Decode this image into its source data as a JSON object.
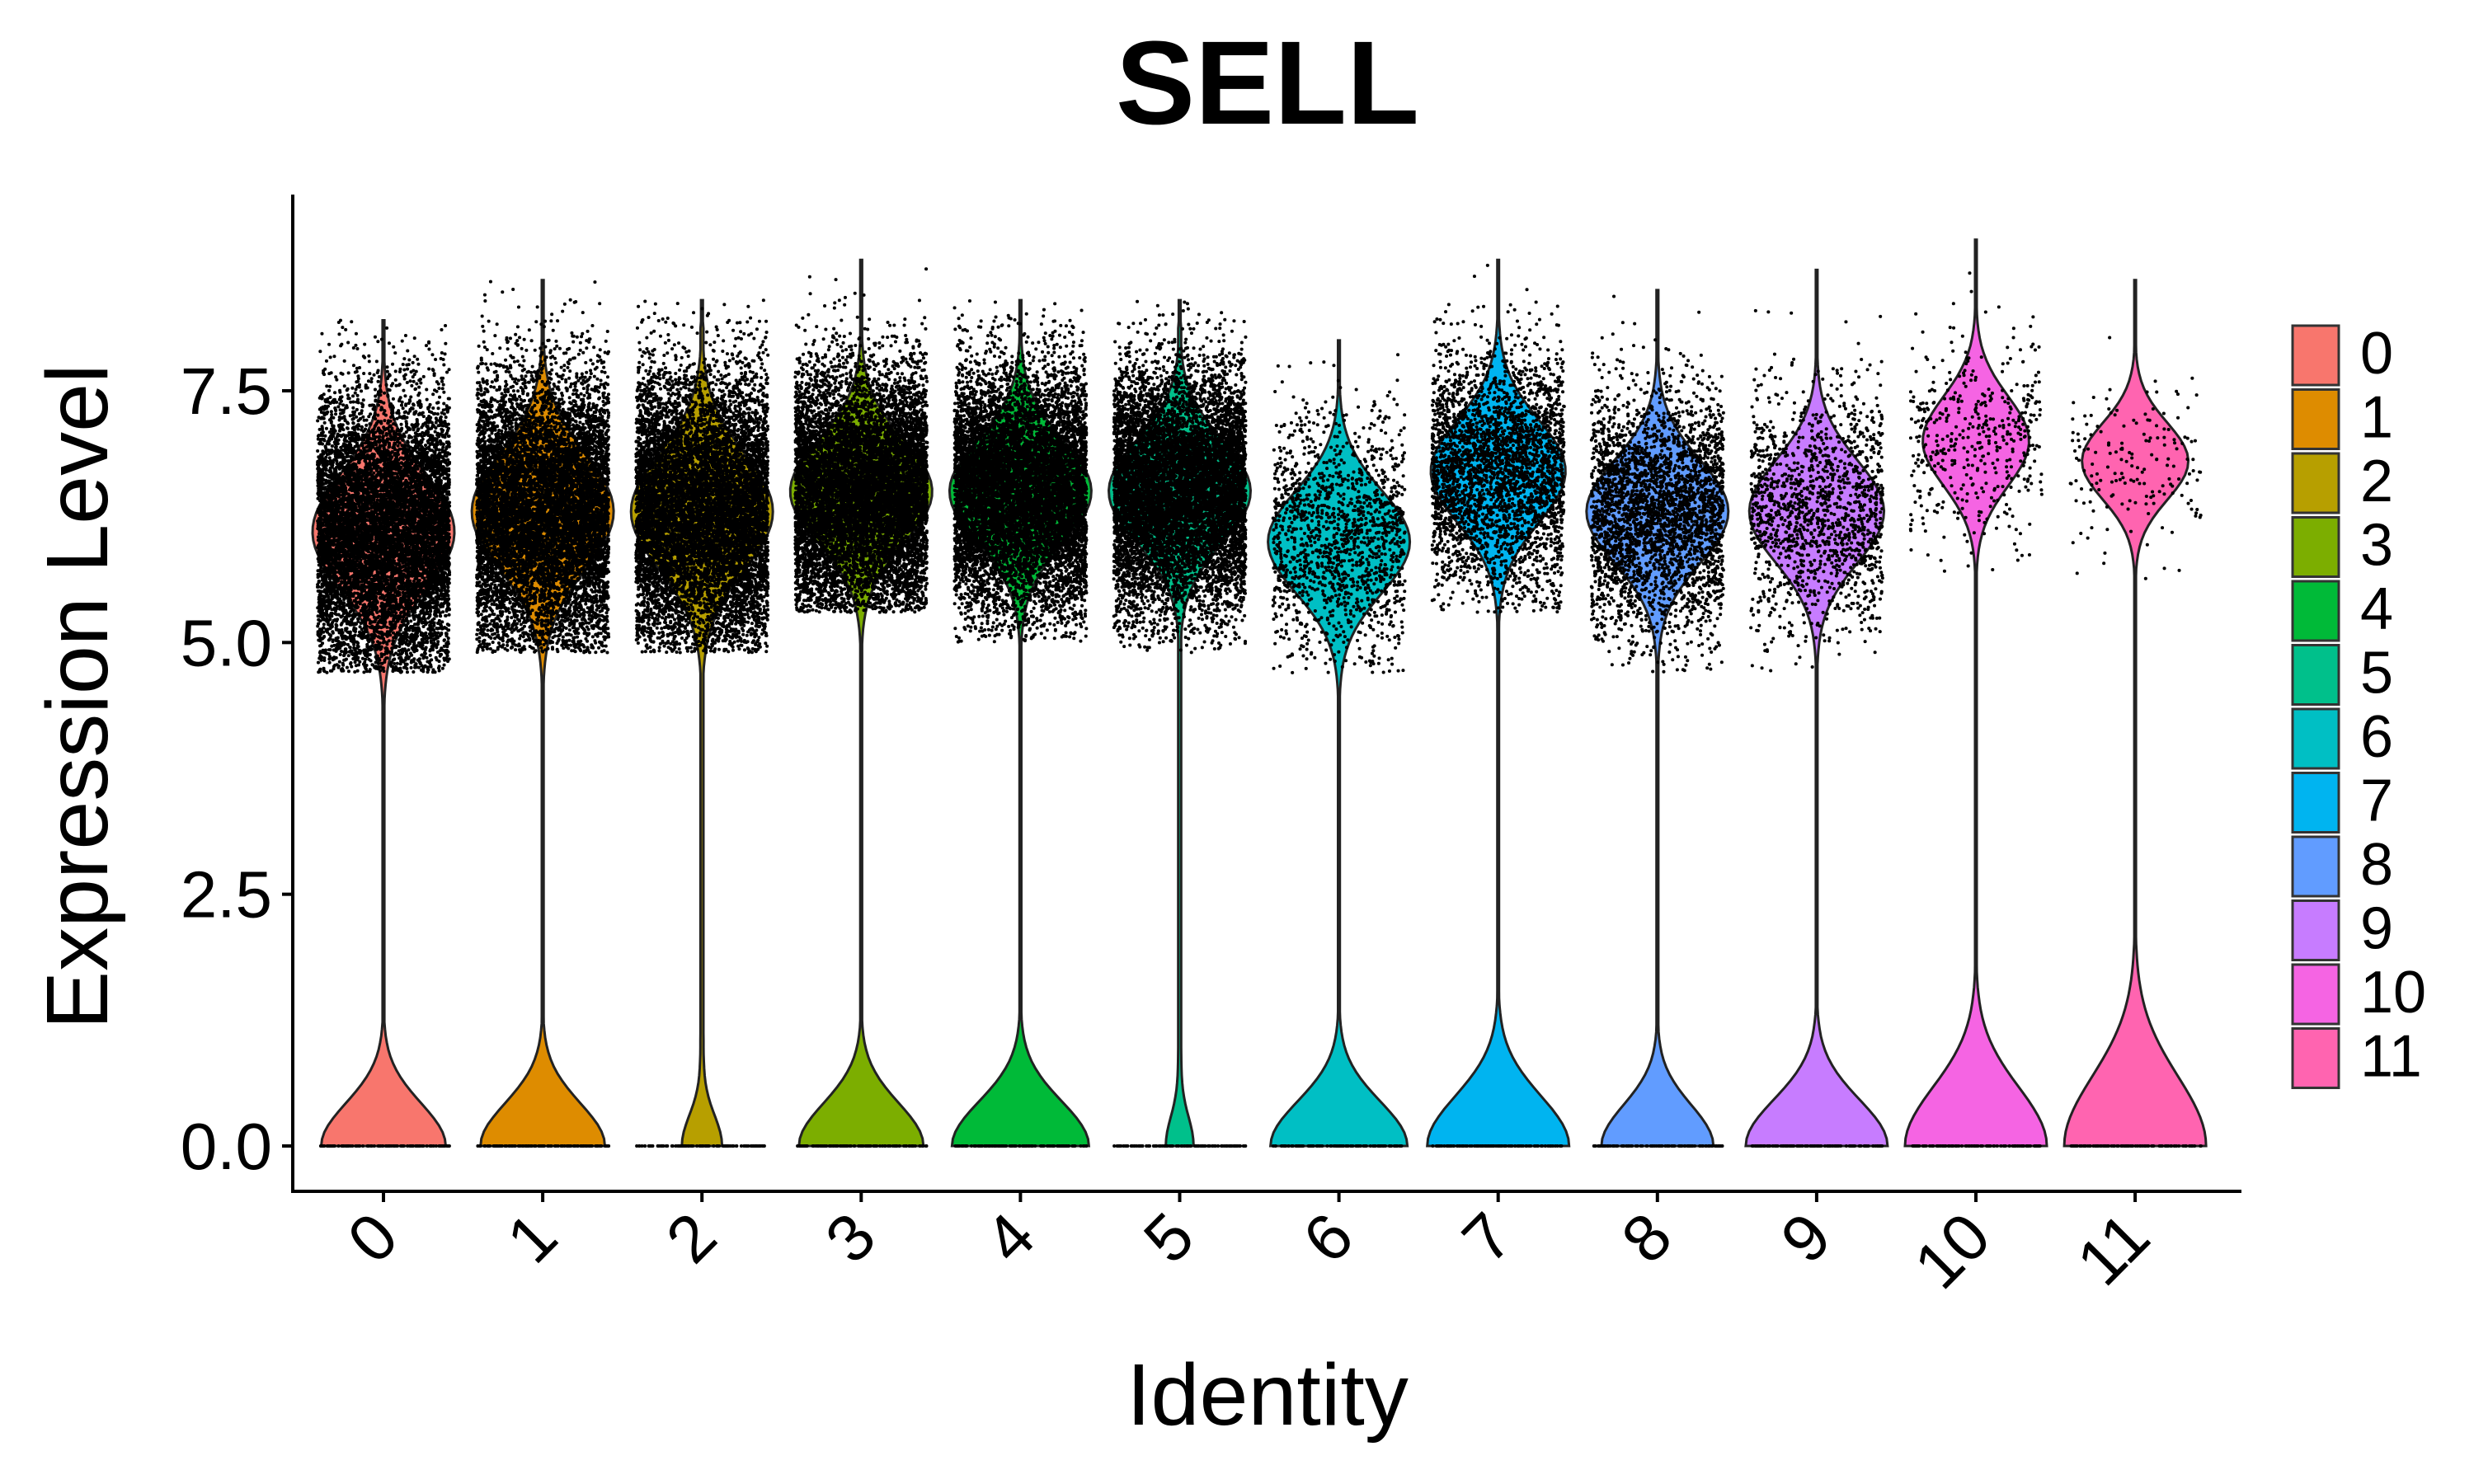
{
  "chart_data": {
    "type": "violin",
    "title": "SELL",
    "xlabel": "Identity",
    "ylabel": "Expression Level",
    "ylim": [
      -0.45,
      9.2
    ],
    "yticks": [
      "0.0",
      "2.5",
      "5.0",
      "7.5"
    ],
    "categories": [
      "0",
      "1",
      "2",
      "3",
      "4",
      "5",
      "6",
      "7",
      "8",
      "9",
      "10",
      "11"
    ],
    "colors": [
      "#F8766D",
      "#DE8C00",
      "#B79F00",
      "#7CAE00",
      "#00BA38",
      "#00C08B",
      "#00BFC4",
      "#00B4F0",
      "#619CFF",
      "#C77CFF",
      "#F564E3",
      "#FF64B0"
    ],
    "legend_position": "right",
    "grid": false,
    "series": [
      {
        "name": "0",
        "max": 8.2,
        "zero_peak": 1.0,
        "high_center": 6.1,
        "high_spread": 0.9,
        "high_min": 4.7,
        "point_density": "very high"
      },
      {
        "name": "1",
        "max": 8.6,
        "zero_peak": 1.0,
        "high_center": 6.3,
        "high_spread": 0.9,
        "high_min": 4.9,
        "point_density": "very high"
      },
      {
        "name": "2",
        "max": 8.4,
        "zero_peak": 0.3,
        "high_center": 6.3,
        "high_spread": 0.9,
        "high_min": 4.9,
        "point_density": "very high"
      },
      {
        "name": "3",
        "max": 8.8,
        "zero_peak": 1.0,
        "high_center": 6.5,
        "high_spread": 0.8,
        "high_min": 5.3,
        "point_density": "very high"
      },
      {
        "name": "4",
        "max": 8.4,
        "zero_peak": 1.1,
        "high_center": 6.5,
        "high_spread": 0.8,
        "high_min": 5.0,
        "point_density": "very high"
      },
      {
        "name": "5",
        "max": 8.4,
        "zero_peak": 0.2,
        "high_center": 6.5,
        "high_spread": 0.8,
        "high_min": 4.9,
        "point_density": "very high"
      },
      {
        "name": "6",
        "max": 8.0,
        "zero_peak": 1.1,
        "high_center": 6.0,
        "high_spread": 0.8,
        "high_min": 4.7,
        "point_density": "medium"
      },
      {
        "name": "7",
        "max": 8.8,
        "zero_peak": 1.4,
        "high_center": 6.7,
        "high_spread": 0.8,
        "high_min": 5.3,
        "point_density": "high"
      },
      {
        "name": "8",
        "max": 8.5,
        "zero_peak": 0.9,
        "high_center": 6.3,
        "high_spread": 0.8,
        "high_min": 4.7,
        "point_density": "high"
      },
      {
        "name": "9",
        "max": 8.7,
        "zero_peak": 1.2,
        "high_center": 6.3,
        "high_spread": 0.8,
        "high_min": 4.7,
        "point_density": "medium"
      },
      {
        "name": "10",
        "max": 9.0,
        "zero_peak": 1.9,
        "high_center": 7.0,
        "high_spread": 0.7,
        "high_min": 5.7,
        "point_density": "low"
      },
      {
        "name": "11",
        "max": 8.6,
        "zero_peak": 2.5,
        "high_center": 6.8,
        "high_spread": 0.6,
        "high_min": 5.5,
        "point_density": "very low"
      }
    ]
  }
}
